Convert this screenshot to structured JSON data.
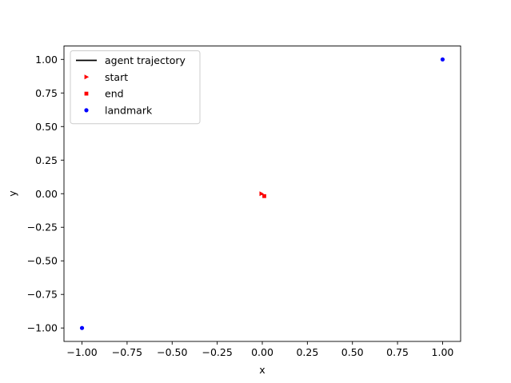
{
  "chart_data": {
    "type": "scatter",
    "title": "",
    "xlabel": "x",
    "ylabel": "y",
    "xlim": [
      -1.1,
      1.1
    ],
    "ylim": [
      -1.1,
      1.1
    ],
    "xticks": [
      -1.0,
      -0.75,
      -0.5,
      -0.25,
      0.0,
      0.25,
      0.5,
      0.75,
      1.0
    ],
    "yticks": [
      -1.0,
      -0.75,
      -0.5,
      -0.25,
      0.0,
      0.25,
      0.5,
      0.75,
      1.0
    ],
    "xtick_labels": [
      "−1.00",
      "−0.75",
      "−0.50",
      "−0.25",
      "0.00",
      "0.25",
      "0.50",
      "0.75",
      "1.00"
    ],
    "ytick_labels": [
      "−1.00",
      "−0.75",
      "−0.50",
      "−0.25",
      "0.00",
      "0.25",
      "0.50",
      "0.75",
      "1.00"
    ],
    "grid": false,
    "legend_position": "upper-left",
    "series": [
      {
        "name": "agent trajectory",
        "kind": "line",
        "color": "#000000",
        "marker": "none",
        "x": [
          -0.005,
          -0.001,
          0.003,
          0.007,
          0.011
        ],
        "y": [
          0.0,
          -0.004,
          -0.009,
          -0.014,
          -0.018
        ]
      },
      {
        "name": "start",
        "kind": "marker",
        "color": "#ff0000",
        "marker": "triangle-right",
        "x": [
          -0.005
        ],
        "y": [
          0.0
        ]
      },
      {
        "name": "end",
        "kind": "marker",
        "color": "#ff0000",
        "marker": "square",
        "x": [
          0.011
        ],
        "y": [
          -0.018
        ]
      },
      {
        "name": "landmark",
        "kind": "marker",
        "color": "#0000ff",
        "marker": "circle",
        "x": [
          1.0,
          -1.0
        ],
        "y": [
          1.0,
          -1.0
        ]
      }
    ]
  }
}
